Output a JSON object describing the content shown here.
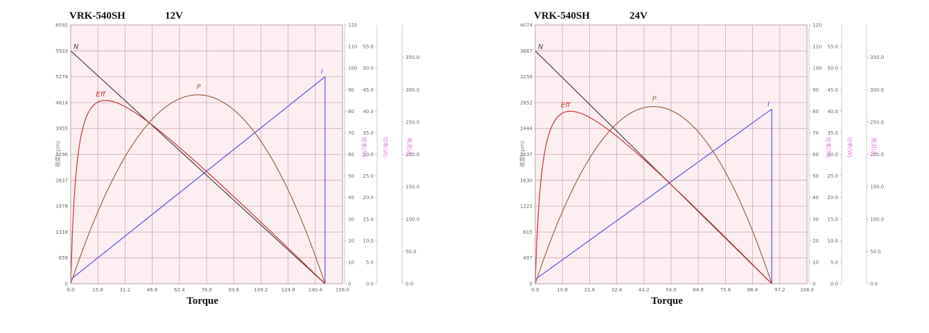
{
  "chart_data": [
    {
      "type": "line",
      "title": "VRK-540SH",
      "voltage": "12V",
      "xlabel": "Torque",
      "ylabel_left": "速度(rpm)",
      "right_axis_titles": [
        "效率(%)",
        "功率(W)",
        "电流(A)"
      ],
      "x_ticks": [
        "0.0",
        "15.6",
        "31.2",
        "46.8",
        "62.4",
        "78.0",
        "93.6",
        "109.2",
        "124.8",
        "140.4",
        "156.0"
      ],
      "xlim": [
        0,
        156
      ],
      "speed_ticks": [
        "0",
        "659",
        "1318",
        "1978",
        "2637",
        "3296",
        "3955",
        "4614",
        "5274",
        "5933",
        "6592"
      ],
      "speed_lim": [
        0,
        6592
      ],
      "current_ticks": [
        "0",
        "10",
        "20",
        "30",
        "40",
        "50",
        "60",
        "70",
        "80",
        "90",
        "100",
        "110",
        "120"
      ],
      "current_lim": [
        0,
        120
      ],
      "eff_ticks": [
        "0.0",
        "5.0",
        "10.0",
        "15.0",
        "20.0",
        "25.0",
        "30.0",
        "35.0",
        "40.0",
        "45.0",
        "50.0",
        "55.0"
      ],
      "eff_lim": [
        0,
        60
      ],
      "power_ticks": [
        "0.0",
        "50.0",
        "100.0",
        "150.0",
        "200.0",
        "250.0",
        "300.0",
        "350.0"
      ],
      "power_lim": [
        0,
        400
      ],
      "series": [
        {
          "name": "N",
          "color": "#444444",
          "x": [
            0,
            146
          ],
          "y": [
            5933,
            0
          ]
        },
        {
          "name": "I",
          "color": "#5555dd",
          "x": [
            0,
            146
          ],
          "y": [
            2,
            96
          ]
        },
        {
          "name": "P",
          "color": "#996644",
          "stall_torque": 146,
          "peak_x": 73,
          "peak_y": 292
        },
        {
          "name": "Eff",
          "color": "#cc3333",
          "stall_torque": 146,
          "peak_x": 20,
          "peak_y": 42.5
        }
      ],
      "grid": true
    },
    {
      "type": "line",
      "title": "VRK-540SH",
      "voltage": "24V",
      "xlabel": "Torque",
      "ylabel_left": "速度(rpm)",
      "right_axis_titles": [
        "效率(%)",
        "功率(W)",
        "电流(A)"
      ],
      "x_ticks": [
        "0.0",
        "10.8",
        "21.6",
        "32.4",
        "43.2",
        "54.0",
        "64.8",
        "75.6",
        "86.4",
        "97.2",
        "108.0"
      ],
      "xlim": [
        0,
        108
      ],
      "speed_ticks": [
        "0",
        "407",
        "815",
        "1222",
        "1630",
        "2037",
        "2444",
        "2852",
        "3259",
        "3667",
        "4074"
      ],
      "speed_lim": [
        0,
        4074
      ],
      "current_ticks": [
        "0",
        "10",
        "20",
        "30",
        "40",
        "50",
        "60",
        "70",
        "80",
        "90",
        "100",
        "110",
        "120"
      ],
      "current_lim": [
        0,
        120
      ],
      "eff_ticks": [
        "0.0",
        "5.0",
        "10.0",
        "15.0",
        "20.0",
        "25.0",
        "30.0",
        "35.0",
        "40.0",
        "45.0",
        "50.0",
        "55.0"
      ],
      "eff_lim": [
        0,
        60
      ],
      "power_ticks": [
        "0.0",
        "50.0",
        "100.0",
        "150.0",
        "200.0",
        "250.0",
        "300.0",
        "350.0"
      ],
      "power_lim": [
        0,
        400
      ],
      "series": [
        {
          "name": "N",
          "color": "#444444",
          "x": [
            0,
            94
          ],
          "y": [
            3667,
            0
          ]
        },
        {
          "name": "I",
          "color": "#5555dd",
          "x": [
            0,
            94
          ],
          "y": [
            2,
            81
          ]
        },
        {
          "name": "P",
          "color": "#996644",
          "stall_torque": 94,
          "peak_x": 47,
          "peak_y": 274
        },
        {
          "name": "Eff",
          "color": "#cc3333",
          "stall_torque": 94,
          "peak_x": 14,
          "peak_y": 40
        }
      ],
      "grid": true
    }
  ]
}
